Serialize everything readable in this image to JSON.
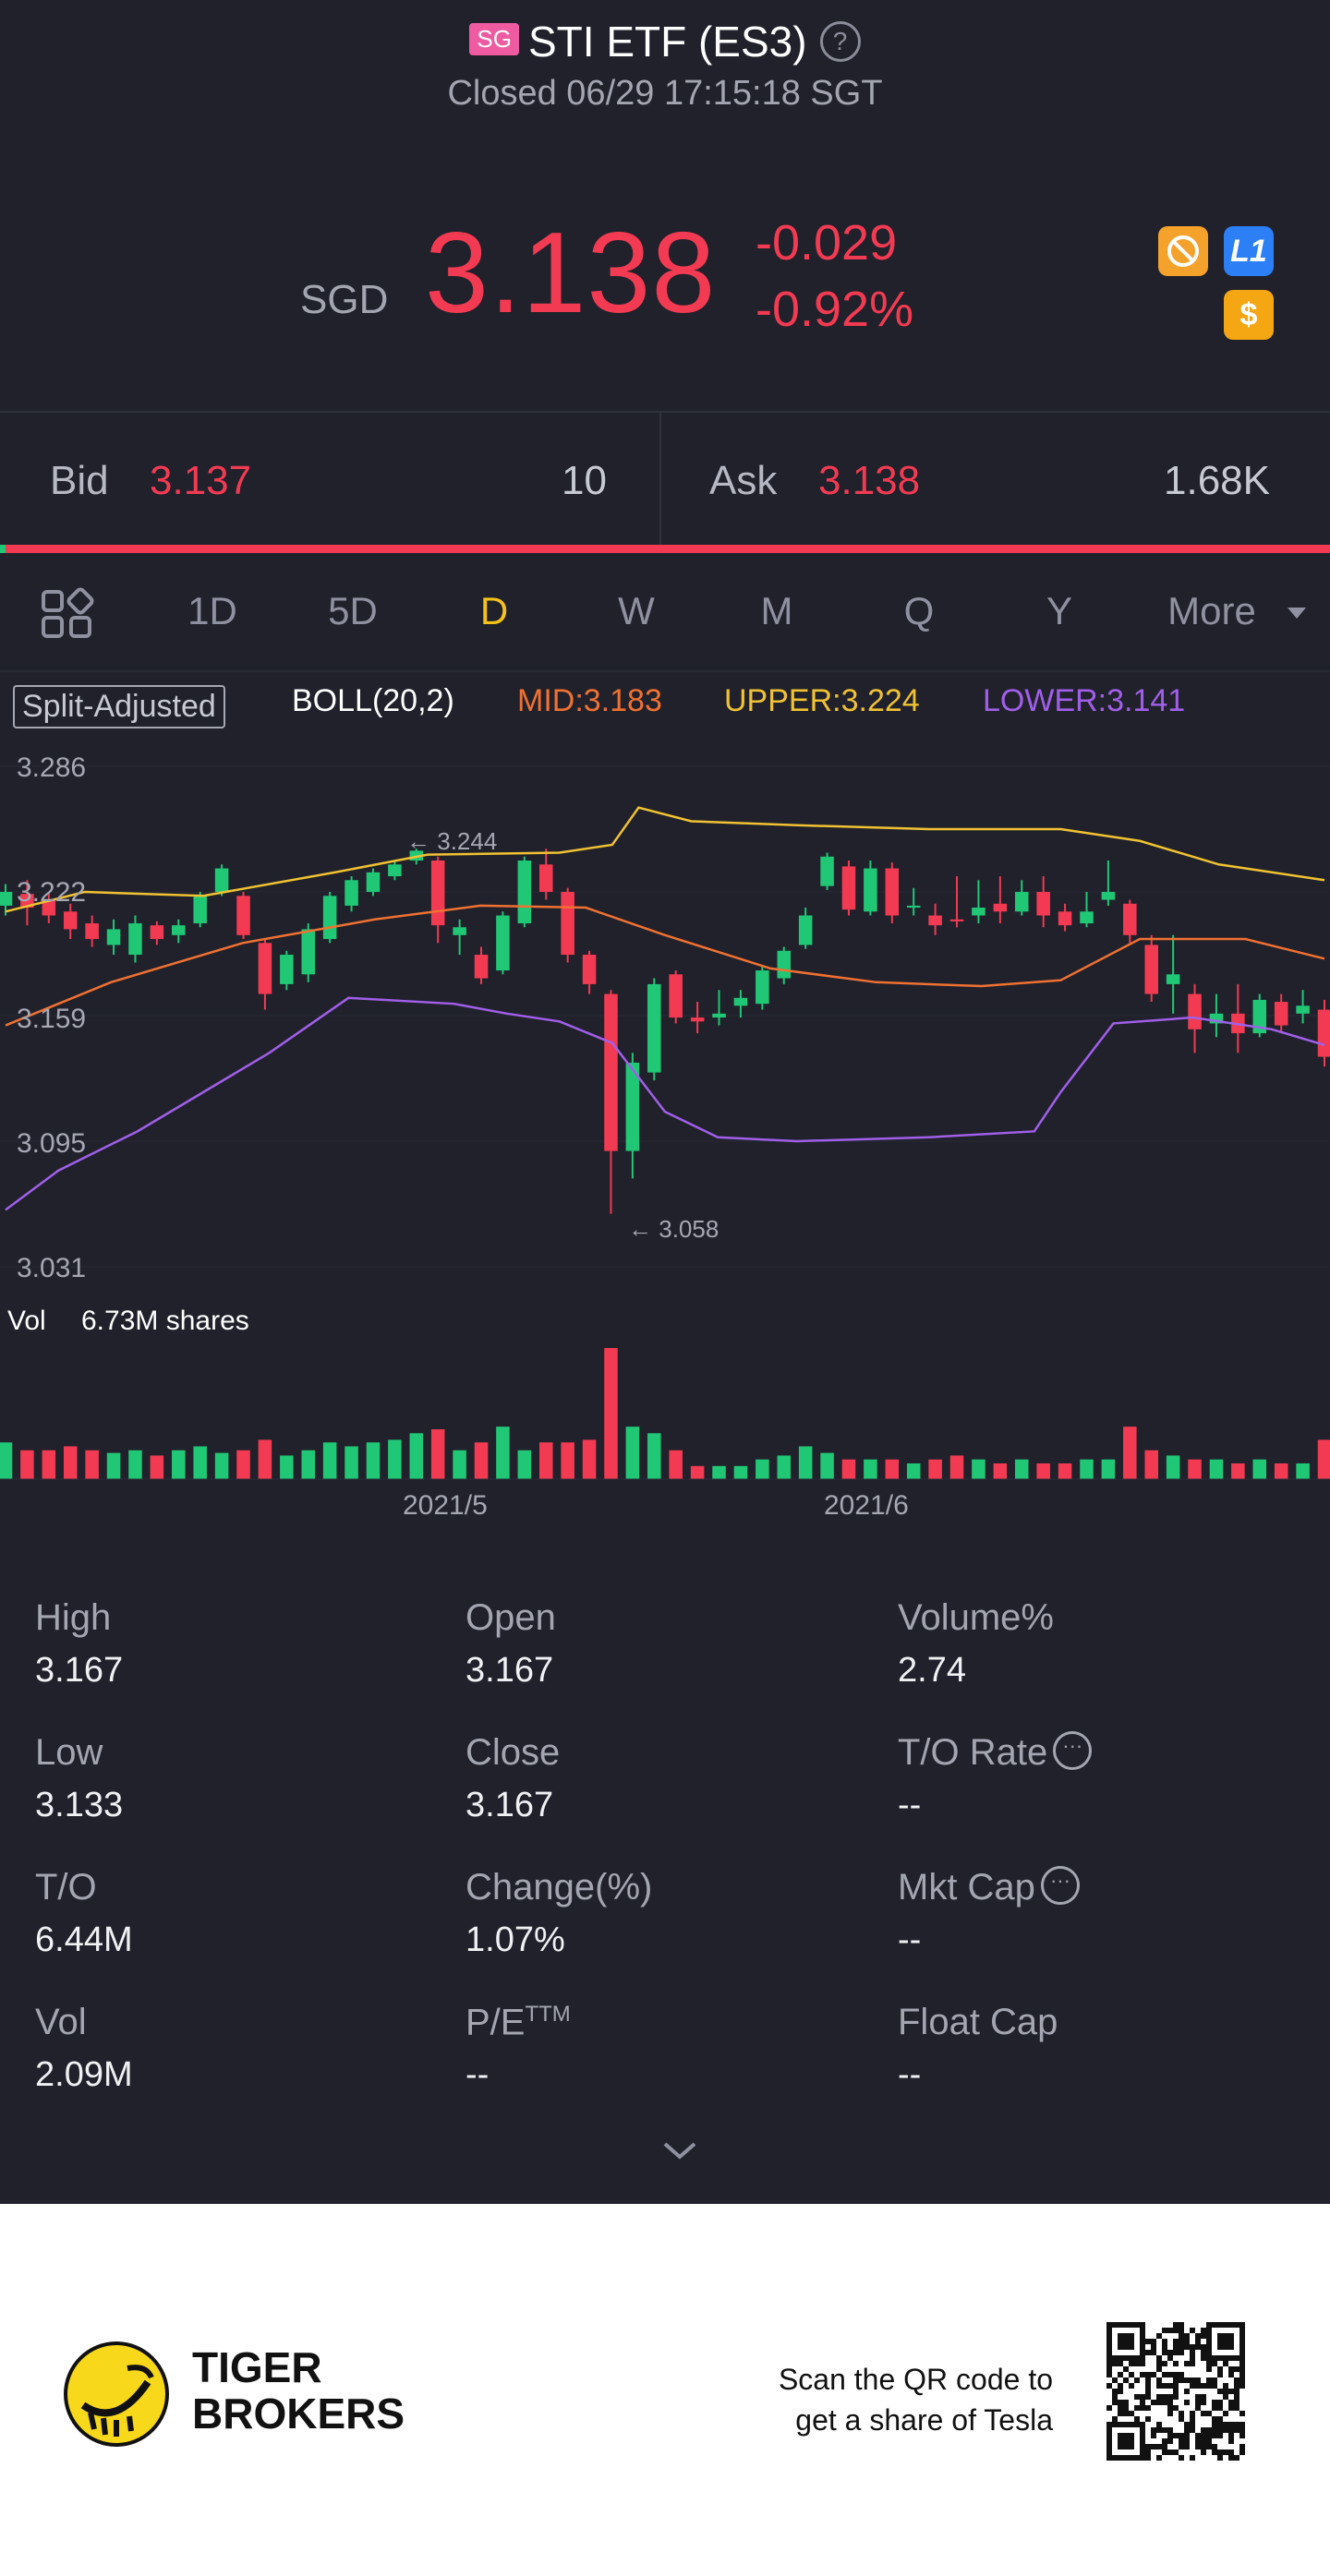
{
  "header": {
    "market_badge": "SG",
    "title": "STI ETF (ES3)",
    "help_icon": "?",
    "status": "Closed 06/29 17:15:18 SGT",
    "currency": "SGD",
    "price": "3.138",
    "change": "-0.029",
    "change_pct": "-0.92%",
    "icons": [
      "no-trade-icon",
      "level1-icon",
      "dollar-icon"
    ],
    "level_badge": "L1",
    "dollar_badge": "$"
  },
  "quote": {
    "bid_label": "Bid",
    "bid_price": "3.137",
    "bid_size": "10",
    "ask_label": "Ask",
    "ask_price": "3.138",
    "ask_size": "1.68K"
  },
  "tabs": {
    "items": [
      "1D",
      "5D",
      "D",
      "W",
      "M",
      "Q",
      "Y",
      "More"
    ],
    "active": "D"
  },
  "indicators": {
    "adjust": "Split-Adjusted",
    "boll": "BOLL(20,2)",
    "mid": "MID:3.183",
    "upper": "UPPER:3.224",
    "lower": "LOWER:3.141"
  },
  "chart_data": {
    "type": "candlestick",
    "y_ticks": [
      "3.286",
      "3.222",
      "3.159",
      "3.095",
      "3.031"
    ],
    "ylim": [
      3.031,
      3.286
    ],
    "high_marker": "3.244",
    "low_marker": "3.058",
    "volume_label": "Vol",
    "volume_value": "6.73M shares",
    "x_ticks": [
      "2021/5",
      "2021/6"
    ],
    "colors": {
      "up": "#20c876",
      "down": "#f23b52",
      "upper": "#f1c232",
      "mid": "#f07132",
      "lower": "#a15fe9"
    }
  },
  "stats": [
    {
      "label": "High",
      "value": "3.167"
    },
    {
      "label": "Open",
      "value": "3.167"
    },
    {
      "label": "Volume%",
      "value": "2.74"
    },
    {
      "label": "Low",
      "value": "3.133"
    },
    {
      "label": "Close",
      "value": "3.167"
    },
    {
      "label": "T/O Rate",
      "value": "--"
    },
    {
      "label": "T/O",
      "value": "6.44M"
    },
    {
      "label": "Change(%)",
      "value": "1.07%"
    },
    {
      "label": "Mkt Cap",
      "value": "--"
    },
    {
      "label": "Vol",
      "value": "2.09M"
    },
    {
      "label": "P/E",
      "value": "--"
    },
    {
      "label": "Float Cap",
      "value": "--"
    }
  ],
  "pe_superscript": "TTM",
  "footer": {
    "brand_line1": "TIGER",
    "brand_line2": "BROKERS",
    "qr_text_1": "Scan the QR code to",
    "qr_text_2": "get a share of Tesla"
  }
}
